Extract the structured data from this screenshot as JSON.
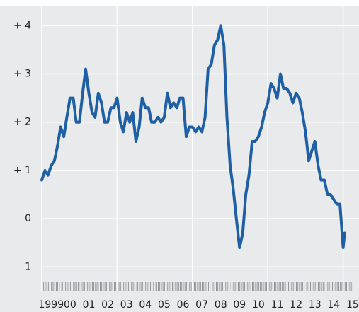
{
  "chart_data": {
    "type": "line",
    "x": [
      1999.0,
      1999.17,
      1999.33,
      1999.5,
      1999.67,
      1999.83,
      2000.0,
      2000.17,
      2000.33,
      2000.5,
      2000.67,
      2000.83,
      2001.0,
      2001.17,
      2001.33,
      2001.5,
      2001.67,
      2001.83,
      2002.0,
      2002.17,
      2002.33,
      2002.5,
      2002.67,
      2002.83,
      2003.0,
      2003.17,
      2003.33,
      2003.5,
      2003.67,
      2003.83,
      2004.0,
      2004.17,
      2004.33,
      2004.5,
      2004.67,
      2004.83,
      2005.0,
      2005.17,
      2005.33,
      2005.5,
      2005.67,
      2005.83,
      2006.0,
      2006.17,
      2006.33,
      2006.5,
      2006.67,
      2006.83,
      2007.0,
      2007.17,
      2007.33,
      2007.5,
      2007.67,
      2007.83,
      2008.0,
      2008.17,
      2008.33,
      2008.5,
      2008.67,
      2008.83,
      2009.0,
      2009.17,
      2009.33,
      2009.5,
      2009.67,
      2009.83,
      2010.0,
      2010.17,
      2010.33,
      2010.5,
      2010.67,
      2010.83,
      2011.0,
      2011.17,
      2011.33,
      2011.5,
      2011.67,
      2011.83,
      2012.0,
      2012.17,
      2012.33,
      2012.5,
      2012.67,
      2012.83,
      2013.0,
      2013.17,
      2013.33,
      2013.5,
      2013.67,
      2013.83,
      2014.0,
      2014.17,
      2014.33,
      2014.5,
      2014.67,
      2014.83,
      2015.0,
      2015.08
    ],
    "series": [
      {
        "color": "#1f5fa5",
        "values": [
          0.8,
          1.0,
          0.9,
          1.1,
          1.2,
          1.5,
          1.9,
          1.7,
          2.1,
          2.5,
          2.5,
          2.0,
          2.0,
          2.6,
          3.1,
          2.6,
          2.2,
          2.1,
          2.6,
          2.4,
          2.0,
          2.0,
          2.3,
          2.3,
          2.5,
          2.0,
          1.8,
          2.2,
          2.0,
          2.2,
          1.6,
          1.9,
          2.5,
          2.3,
          2.3,
          2.0,
          2.0,
          2.1,
          2.0,
          2.1,
          2.6,
          2.3,
          2.4,
          2.3,
          2.5,
          2.5,
          1.7,
          1.9,
          1.9,
          1.8,
          1.9,
          1.8,
          2.1,
          3.1,
          3.2,
          3.6,
          3.7,
          4.0,
          3.6,
          2.1,
          1.1,
          0.6,
          0.0,
          -0.6,
          -0.3,
          0.5,
          0.9,
          1.6,
          1.6,
          1.7,
          1.9,
          2.2,
          2.4,
          2.8,
          2.7,
          2.5,
          3.0,
          2.7,
          2.7,
          2.6,
          2.4,
          2.6,
          2.5,
          2.2,
          1.8,
          1.2,
          1.4,
          1.6,
          1.1,
          0.8,
          0.8,
          0.5,
          0.5,
          0.4,
          0.3,
          0.3,
          -0.6,
          -0.3
        ]
      }
    ],
    "xlim": [
      1999,
      2015.75
    ],
    "xticks": [
      1999,
      {
        "value": 2000,
        "label": "00"
      },
      {
        "value": 2001,
        "label": "01"
      },
      {
        "value": 2002,
        "label": "02"
      },
      {
        "value": 2003,
        "label": "03"
      },
      {
        "value": 2004,
        "label": "04"
      },
      {
        "value": 2005,
        "label": "05"
      },
      {
        "value": 2006,
        "label": "06"
      },
      {
        "value": 2007,
        "label": "07"
      },
      {
        "value": 2008,
        "label": "08"
      },
      {
        "value": 2009,
        "label": "09"
      },
      {
        "value": 2010,
        "label": "10"
      },
      {
        "value": 2011,
        "label": "11"
      },
      {
        "value": 2012,
        "label": "12"
      },
      {
        "value": 2013,
        "label": "13"
      },
      {
        "value": 2014,
        "label": "14"
      },
      {
        "value": 2015,
        "label": "15"
      }
    ],
    "ylim": [
      -1.45,
      4.4
    ],
    "yticks": [
      {
        "value": 4,
        "label": "+ 4"
      },
      {
        "value": 3,
        "label": "+ 3"
      },
      {
        "value": 2,
        "label": "+ 2"
      },
      {
        "value": 1,
        "label": "+ 1"
      },
      0,
      {
        "value": -1,
        "label": "– 1"
      }
    ],
    "grid": true
  }
}
